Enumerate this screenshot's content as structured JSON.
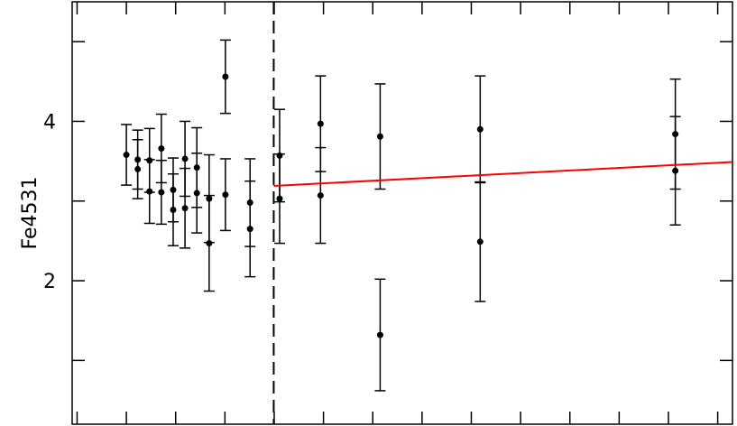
{
  "chart_data": {
    "type": "errorbar",
    "ylabel": "Fe4531",
    "xlim": [
      -0.1,
      13.3
    ],
    "ylim": [
      0.2,
      5.5
    ],
    "xticks": [
      0,
      1,
      2,
      3,
      4,
      5,
      6,
      7,
      8,
      9,
      10,
      11,
      12,
      13
    ],
    "yticks": [
      {
        "value": 1,
        "label": null
      },
      2,
      {
        "value": 3,
        "label": null
      },
      4,
      {
        "value": 5,
        "label": null
      }
    ],
    "series": [
      {
        "color": "#000000",
        "x": [
          1.0,
          1.23,
          1.23,
          1.47,
          1.47,
          1.71,
          1.71,
          1.95,
          1.95,
          2.19,
          2.19,
          2.43,
          2.43,
          2.68,
          2.68,
          3.01,
          3.01,
          3.51,
          3.51,
          4.11,
          4.11,
          4.94,
          4.94,
          6.15,
          6.15,
          8.18,
          8.18,
          12.14,
          12.14
        ],
        "values": [
          3.58,
          3.52,
          3.4,
          3.51,
          3.12,
          3.66,
          3.11,
          3.14,
          2.89,
          3.53,
          2.91,
          3.42,
          3.1,
          3.03,
          2.47,
          4.56,
          3.08,
          2.98,
          2.65,
          3.57,
          3.03,
          3.97,
          3.07,
          3.81,
          1.32,
          3.9,
          2.49,
          3.84,
          3.38
        ],
        "errors": [
          0.38,
          0.37,
          0.37,
          0.4,
          0.4,
          0.43,
          0.4,
          0.4,
          0.45,
          0.47,
          0.5,
          0.5,
          0.5,
          0.55,
          0.6,
          0.46,
          0.45,
          0.55,
          0.6,
          0.58,
          0.56,
          0.6,
          0.6,
          0.66,
          0.7,
          0.67,
          0.75,
          0.69,
          0.68
        ]
      }
    ],
    "fit": {
      "color": "#ff0000",
      "x": [
        3.99,
        13.3
      ],
      "values": [
        3.19,
        3.49
      ]
    },
    "vline": {
      "x": 3.99,
      "dashed": true
    }
  }
}
